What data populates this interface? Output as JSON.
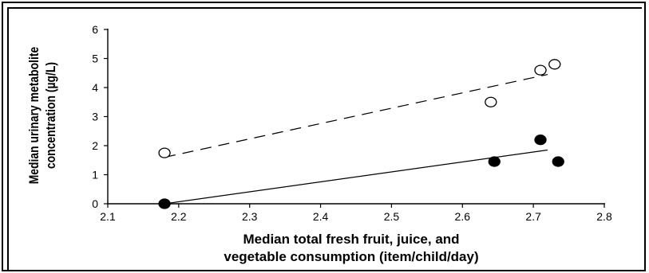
{
  "chart_data": {
    "type": "scatter",
    "title": "",
    "xlabel_lines": [
      "Median total fresh fruit, juice, and",
      "vegetable consumption (item/child/day)"
    ],
    "ylabel_lines": [
      "Median urinary metabolite",
      "concentration (µg/L)"
    ],
    "xlim": [
      2.1,
      2.8
    ],
    "ylim": [
      0,
      6
    ],
    "xticks": [
      "2.1",
      "2.2",
      "2.3",
      "2.4",
      "2.5",
      "2.6",
      "2.7",
      "2.8"
    ],
    "yticks": [
      "0",
      "1",
      "2",
      "3",
      "4",
      "5",
      "6"
    ],
    "grid": false,
    "legend": "none",
    "series": [
      {
        "marker": "open-circle",
        "line": "dashed",
        "color": "#000000",
        "points": [
          [
            2.18,
            1.75
          ],
          [
            2.64,
            3.5
          ],
          [
            2.71,
            4.6
          ],
          [
            2.73,
            4.8
          ]
        ],
        "fit": [
          [
            2.18,
            1.6
          ],
          [
            2.72,
            4.45
          ]
        ]
      },
      {
        "marker": "filled-circle",
        "line": "solid",
        "color": "#000000",
        "points": [
          [
            2.18,
            0.0
          ],
          [
            2.645,
            1.45
          ],
          [
            2.71,
            2.2
          ],
          [
            2.735,
            1.45
          ]
        ],
        "fit": [
          [
            2.18,
            0.0
          ],
          [
            2.72,
            1.85
          ]
        ]
      }
    ]
  }
}
